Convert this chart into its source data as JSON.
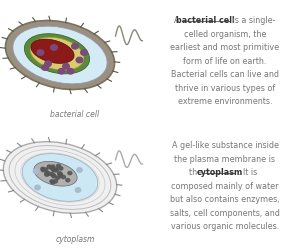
{
  "background": "#ffffff",
  "border_color": "#cccccc",
  "text_color": "#777777",
  "bold_color": "#333333",
  "panel_top_left_label": "bacterial cell",
  "panel_bottom_left_label": "cytoplasm",
  "top_lines": [
    [
      [
        "A ",
        false
      ],
      [
        "bacterial cell",
        true
      ],
      [
        " is a single-",
        false
      ]
    ],
    [
      [
        "celled organism, the",
        false
      ]
    ],
    [
      [
        "earliest and most primitive",
        false
      ]
    ],
    [
      [
        "form of life on earth.",
        false
      ]
    ],
    [
      [
        "Bacterial cells can live and",
        false
      ]
    ],
    [
      [
        "thrive in various types of",
        false
      ]
    ],
    [
      [
        "extreme environments.",
        false
      ]
    ]
  ],
  "bot_lines": [
    [
      [
        "A gel-like substance inside",
        false
      ]
    ],
    [
      [
        "the plasma membrane is",
        false
      ]
    ],
    [
      [
        "the ",
        false
      ],
      [
        "cytoplasm",
        true
      ],
      [
        ". It is",
        false
      ]
    ],
    [
      [
        "composed mainly of water",
        false
      ]
    ],
    [
      [
        "but also contains enzymes,",
        false
      ]
    ],
    [
      [
        "salts, cell components, and",
        false
      ]
    ],
    [
      [
        "various organic molecules.",
        false
      ]
    ]
  ],
  "cell_outer_color": "#9a9080",
  "cell_wall_dark": "#7a7060",
  "cell_inner_light": "#d4eaf5",
  "cell_green_ring": "#5a8a40",
  "cell_yellow_ring": "#d8cc70",
  "cell_nucleus_red": "#8b1a1a",
  "cell_dots_purple": "#7a4a7a",
  "cell2_outer_fill": "#f5f5f5",
  "cell2_inner_light": "#cce8f5",
  "cell2_nucleus_gray": "#888888"
}
